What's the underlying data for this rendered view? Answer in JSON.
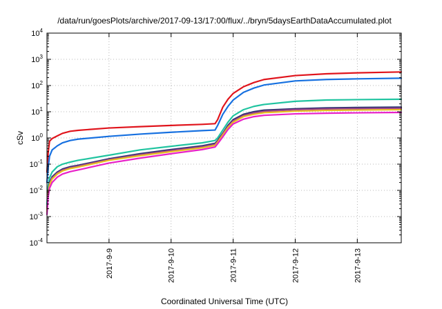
{
  "chart_data": {
    "type": "line",
    "title": "/data/run/goesPlots/archive/2017-09-13/17:00/flux/../bryn/5daysEarthDataAccumulated.plot",
    "xlabel": "Coordinated Universal Time (UTC)",
    "ylabel": "cSv",
    "xlim": [
      "2017-09-08 00:00",
      "2017-09-13 17:00"
    ],
    "ylim": [
      0.0001,
      10000
    ],
    "y_scale": "log",
    "grid": true,
    "legend": "none",
    "x_ticks": [
      {
        "value": "2017-09-09 00:00",
        "label": "2017-9-9"
      },
      {
        "value": "2017-09-10 00:00",
        "label": "2017-9-10"
      },
      {
        "value": "2017-09-11 00:00",
        "label": "2017-9-11"
      },
      {
        "value": "2017-09-12 00:00",
        "label": "2017-9-12"
      },
      {
        "value": "2017-09-13 00:00",
        "label": "2017-9-13"
      }
    ],
    "y_ticks": [
      {
        "value": 0.0001,
        "base": "10",
        "exp": "-4"
      },
      {
        "value": 0.001,
        "base": "10",
        "exp": "-3"
      },
      {
        "value": 0.01,
        "base": "10",
        "exp": "-2"
      },
      {
        "value": 0.1,
        "base": "10",
        "exp": "-1"
      },
      {
        "value": 1,
        "base": "10",
        "exp": "0"
      },
      {
        "value": 10,
        "base": "10",
        "exp": "1"
      },
      {
        "value": 100,
        "base": "10",
        "exp": "2"
      },
      {
        "value": 1000,
        "base": "10",
        "exp": "3"
      },
      {
        "value": 10000,
        "base": "10",
        "exp": "4"
      }
    ],
    "series": [
      {
        "color": "#e0141c",
        "points": [
          [
            "2017-09-08 00:00",
            0.05
          ],
          [
            "2017-09-08 00:30",
            0.3
          ],
          [
            "2017-09-08 01:00",
            0.75
          ],
          [
            "2017-09-08 02:00",
            0.95
          ],
          [
            "2017-09-08 04:00",
            1.2
          ],
          [
            "2017-09-08 06:00",
            1.5
          ],
          [
            "2017-09-08 09:00",
            1.8
          ],
          [
            "2017-09-08 12:00",
            1.95
          ],
          [
            "2017-09-09 00:00",
            2.4
          ],
          [
            "2017-09-09 12:00",
            2.7
          ],
          [
            "2017-09-10 00:00",
            3.0
          ],
          [
            "2017-09-10 12:00",
            3.3
          ],
          [
            "2017-09-10 17:00",
            3.5
          ],
          [
            "2017-09-10 18:00",
            5.0
          ],
          [
            "2017-09-10 20:00",
            15
          ],
          [
            "2017-09-10 22:00",
            30
          ],
          [
            "2017-09-11 00:00",
            50
          ],
          [
            "2017-09-11 04:00",
            90
          ],
          [
            "2017-09-11 08:00",
            130
          ],
          [
            "2017-09-11 12:00",
            170
          ],
          [
            "2017-09-12 00:00",
            240
          ],
          [
            "2017-09-12 12:00",
            280
          ],
          [
            "2017-09-13 00:00",
            305
          ],
          [
            "2017-09-13 17:00",
            330
          ]
        ]
      },
      {
        "color": "#1670e0",
        "points": [
          [
            "2017-09-08 00:00",
            0.02
          ],
          [
            "2017-09-08 00:30",
            0.08
          ],
          [
            "2017-09-08 01:00",
            0.2
          ],
          [
            "2017-09-08 02:00",
            0.35
          ],
          [
            "2017-09-08 04:00",
            0.5
          ],
          [
            "2017-09-08 06:00",
            0.65
          ],
          [
            "2017-09-08 09:00",
            0.8
          ],
          [
            "2017-09-08 12:00",
            0.9
          ],
          [
            "2017-09-09 00:00",
            1.15
          ],
          [
            "2017-09-09 12:00",
            1.4
          ],
          [
            "2017-09-10 00:00",
            1.65
          ],
          [
            "2017-09-10 12:00",
            1.9
          ],
          [
            "2017-09-10 17:00",
            2.0
          ],
          [
            "2017-09-10 18:00",
            3.0
          ],
          [
            "2017-09-10 20:00",
            8
          ],
          [
            "2017-09-10 22:00",
            16
          ],
          [
            "2017-09-11 00:00",
            28
          ],
          [
            "2017-09-11 04:00",
            55
          ],
          [
            "2017-09-11 08:00",
            80
          ],
          [
            "2017-09-11 12:00",
            105
          ],
          [
            "2017-09-12 00:00",
            150
          ],
          [
            "2017-09-12 12:00",
            170
          ],
          [
            "2017-09-13 00:00",
            180
          ],
          [
            "2017-09-13 17:00",
            190
          ]
        ]
      },
      {
        "color": "#20c4a0",
        "points": [
          [
            "2017-09-08 00:00",
            0.003
          ],
          [
            "2017-09-08 00:30",
            0.015
          ],
          [
            "2017-09-08 01:00",
            0.03
          ],
          [
            "2017-09-08 02:00",
            0.05
          ],
          [
            "2017-09-08 04:00",
            0.08
          ],
          [
            "2017-09-08 06:00",
            0.1
          ],
          [
            "2017-09-08 09:00",
            0.12
          ],
          [
            "2017-09-08 12:00",
            0.14
          ],
          [
            "2017-09-09 00:00",
            0.22
          ],
          [
            "2017-09-09 12:00",
            0.35
          ],
          [
            "2017-09-10 00:00",
            0.48
          ],
          [
            "2017-09-10 12:00",
            0.65
          ],
          [
            "2017-09-10 17:00",
            0.8
          ],
          [
            "2017-09-10 18:00",
            1.0
          ],
          [
            "2017-09-10 20:00",
            2.0
          ],
          [
            "2017-09-10 22:00",
            4.0
          ],
          [
            "2017-09-11 00:00",
            7
          ],
          [
            "2017-09-11 04:00",
            12
          ],
          [
            "2017-09-11 08:00",
            16
          ],
          [
            "2017-09-11 12:00",
            19
          ],
          [
            "2017-09-12 00:00",
            25
          ],
          [
            "2017-09-12 12:00",
            28
          ],
          [
            "2017-09-13 00:00",
            29
          ],
          [
            "2017-09-13 17:00",
            30
          ]
        ]
      },
      {
        "color": "#2a2f6e",
        "points": [
          [
            "2017-09-08 00:00",
            0.002
          ],
          [
            "2017-09-08 00:30",
            0.01
          ],
          [
            "2017-09-08 01:00",
            0.02
          ],
          [
            "2017-09-08 02:00",
            0.033
          ],
          [
            "2017-09-08 04:00",
            0.05
          ],
          [
            "2017-09-08 06:00",
            0.065
          ],
          [
            "2017-09-08 09:00",
            0.08
          ],
          [
            "2017-09-08 12:00",
            0.09
          ],
          [
            "2017-09-09 00:00",
            0.16
          ],
          [
            "2017-09-09 12:00",
            0.25
          ],
          [
            "2017-09-10 00:00",
            0.36
          ],
          [
            "2017-09-10 12:00",
            0.5
          ],
          [
            "2017-09-10 17:00",
            0.62
          ],
          [
            "2017-09-10 18:00",
            0.8
          ],
          [
            "2017-09-10 20:00",
            1.5
          ],
          [
            "2017-09-10 22:00",
            3.0
          ],
          [
            "2017-09-11 00:00",
            5
          ],
          [
            "2017-09-11 04:00",
            8
          ],
          [
            "2017-09-11 08:00",
            10
          ],
          [
            "2017-09-11 12:00",
            11.5
          ],
          [
            "2017-09-12 00:00",
            13
          ],
          [
            "2017-09-12 12:00",
            14
          ],
          [
            "2017-09-13 00:00",
            14.5
          ],
          [
            "2017-09-13 17:00",
            15
          ]
        ]
      },
      {
        "color": "#a0458a",
        "points": [
          [
            "2017-09-08 00:00",
            0.0018
          ],
          [
            "2017-09-08 00:30",
            0.009
          ],
          [
            "2017-09-08 01:00",
            0.018
          ],
          [
            "2017-09-08 02:00",
            0.03
          ],
          [
            "2017-09-08 04:00",
            0.046
          ],
          [
            "2017-09-08 06:00",
            0.06
          ],
          [
            "2017-09-08 09:00",
            0.074
          ],
          [
            "2017-09-08 12:00",
            0.084
          ],
          [
            "2017-09-09 00:00",
            0.15
          ],
          [
            "2017-09-09 12:00",
            0.23
          ],
          [
            "2017-09-10 00:00",
            0.33
          ],
          [
            "2017-09-10 12:00",
            0.46
          ],
          [
            "2017-09-10 17:00",
            0.57
          ],
          [
            "2017-09-10 18:00",
            0.74
          ],
          [
            "2017-09-10 20:00",
            1.4
          ],
          [
            "2017-09-10 22:00",
            2.7
          ],
          [
            "2017-09-11 00:00",
            4.5
          ],
          [
            "2017-09-11 04:00",
            7.2
          ],
          [
            "2017-09-11 08:00",
            9
          ],
          [
            "2017-09-11 12:00",
            10.4
          ],
          [
            "2017-09-12 00:00",
            12
          ],
          [
            "2017-09-12 12:00",
            12.8
          ],
          [
            "2017-09-13 00:00",
            13.2
          ],
          [
            "2017-09-13 17:00",
            13.6
          ]
        ]
      },
      {
        "color": "#e8c020",
        "points": [
          [
            "2017-09-08 00:00",
            0.0015
          ],
          [
            "2017-09-08 00:30",
            0.008
          ],
          [
            "2017-09-08 01:00",
            0.016
          ],
          [
            "2017-09-08 02:00",
            0.027
          ],
          [
            "2017-09-08 04:00",
            0.042
          ],
          [
            "2017-09-08 06:00",
            0.055
          ],
          [
            "2017-09-08 09:00",
            0.068
          ],
          [
            "2017-09-08 12:00",
            0.077
          ],
          [
            "2017-09-09 00:00",
            0.14
          ],
          [
            "2017-09-09 12:00",
            0.21
          ],
          [
            "2017-09-10 00:00",
            0.3
          ],
          [
            "2017-09-10 12:00",
            0.42
          ],
          [
            "2017-09-10 17:00",
            0.52
          ],
          [
            "2017-09-10 18:00",
            0.68
          ],
          [
            "2017-09-10 20:00",
            1.3
          ],
          [
            "2017-09-10 22:00",
            2.5
          ],
          [
            "2017-09-11 00:00",
            4.0
          ],
          [
            "2017-09-11 04:00",
            6.5
          ],
          [
            "2017-09-11 08:00",
            8
          ],
          [
            "2017-09-11 12:00",
            9.2
          ],
          [
            "2017-09-12 00:00",
            10.5
          ],
          [
            "2017-09-12 12:00",
            11.2
          ],
          [
            "2017-09-13 00:00",
            11.6
          ],
          [
            "2017-09-13 17:00",
            12
          ]
        ]
      },
      {
        "color": "#e820c8",
        "points": [
          [
            "2017-09-08 00:00",
            0.0012
          ],
          [
            "2017-09-08 00:30",
            0.006
          ],
          [
            "2017-09-08 01:00",
            0.012
          ],
          [
            "2017-09-08 02:00",
            0.02
          ],
          [
            "2017-09-08 04:00",
            0.032
          ],
          [
            "2017-09-08 06:00",
            0.042
          ],
          [
            "2017-09-08 09:00",
            0.052
          ],
          [
            "2017-09-08 12:00",
            0.06
          ],
          [
            "2017-09-09 00:00",
            0.11
          ],
          [
            "2017-09-09 12:00",
            0.17
          ],
          [
            "2017-09-10 00:00",
            0.25
          ],
          [
            "2017-09-10 12:00",
            0.36
          ],
          [
            "2017-09-10 17:00",
            0.45
          ],
          [
            "2017-09-10 18:00",
            0.6
          ],
          [
            "2017-09-10 20:00",
            1.1
          ],
          [
            "2017-09-10 22:00",
            2.1
          ],
          [
            "2017-09-11 00:00",
            3.4
          ],
          [
            "2017-09-11 04:00",
            5.2
          ],
          [
            "2017-09-11 08:00",
            6.5
          ],
          [
            "2017-09-11 12:00",
            7.3
          ],
          [
            "2017-09-12 00:00",
            8.3
          ],
          [
            "2017-09-12 12:00",
            8.8
          ],
          [
            "2017-09-13 00:00",
            9.1
          ],
          [
            "2017-09-13 17:00",
            9.4
          ]
        ]
      }
    ]
  }
}
